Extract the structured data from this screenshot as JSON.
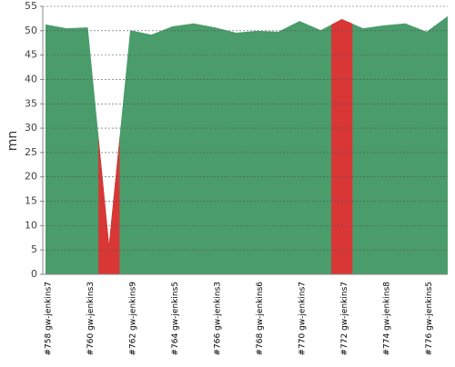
{
  "chart_data": {
    "type": "area",
    "y_label": "mn",
    "categories": [
      "#758 gw-jenkins7",
      null,
      "#760 gw-jenkins3",
      null,
      "#762 gw-jenkins9",
      null,
      "#764 gw-jenkins5",
      null,
      "#766 gw-jenkins3",
      null,
      "#768 gw-jenkins6",
      null,
      "#770 gw-jenkins7",
      null,
      "#772 gw-jenkins7",
      null,
      "#774 gw-jenkins8",
      null,
      "#776 gw-jenkins5",
      null
    ],
    "values": [
      51.3,
      50.5,
      50.7,
      6.3,
      50.1,
      49.2,
      50.9,
      51.5,
      50.7,
      49.6,
      50.0,
      49.8,
      52.0,
      50.1,
      52.4,
      50.5,
      51.1,
      51.5,
      49.8,
      53.0
    ],
    "color": "#4a9c6b",
    "point_colors": [
      "#4a9c6b",
      "#4a9c6b",
      "#4a9c6b",
      "#d93636",
      "#4a9c6b",
      "#4a9c6b",
      "#4a9c6b",
      "#4a9c6b",
      "#4a9c6b",
      "#4a9c6b",
      "#4a9c6b",
      "#4a9c6b",
      "#4a9c6b",
      "#4a9c6b",
      "#d93636",
      "#4a9c6b",
      "#4a9c6b",
      "#4a9c6b",
      "#4a9c6b",
      "#4a9c6b"
    ],
    "ylim": [
      0,
      55
    ],
    "yticks": [
      0,
      5,
      10,
      15,
      20,
      25,
      30,
      35,
      40,
      45,
      50,
      55
    ],
    "grid": true
  }
}
